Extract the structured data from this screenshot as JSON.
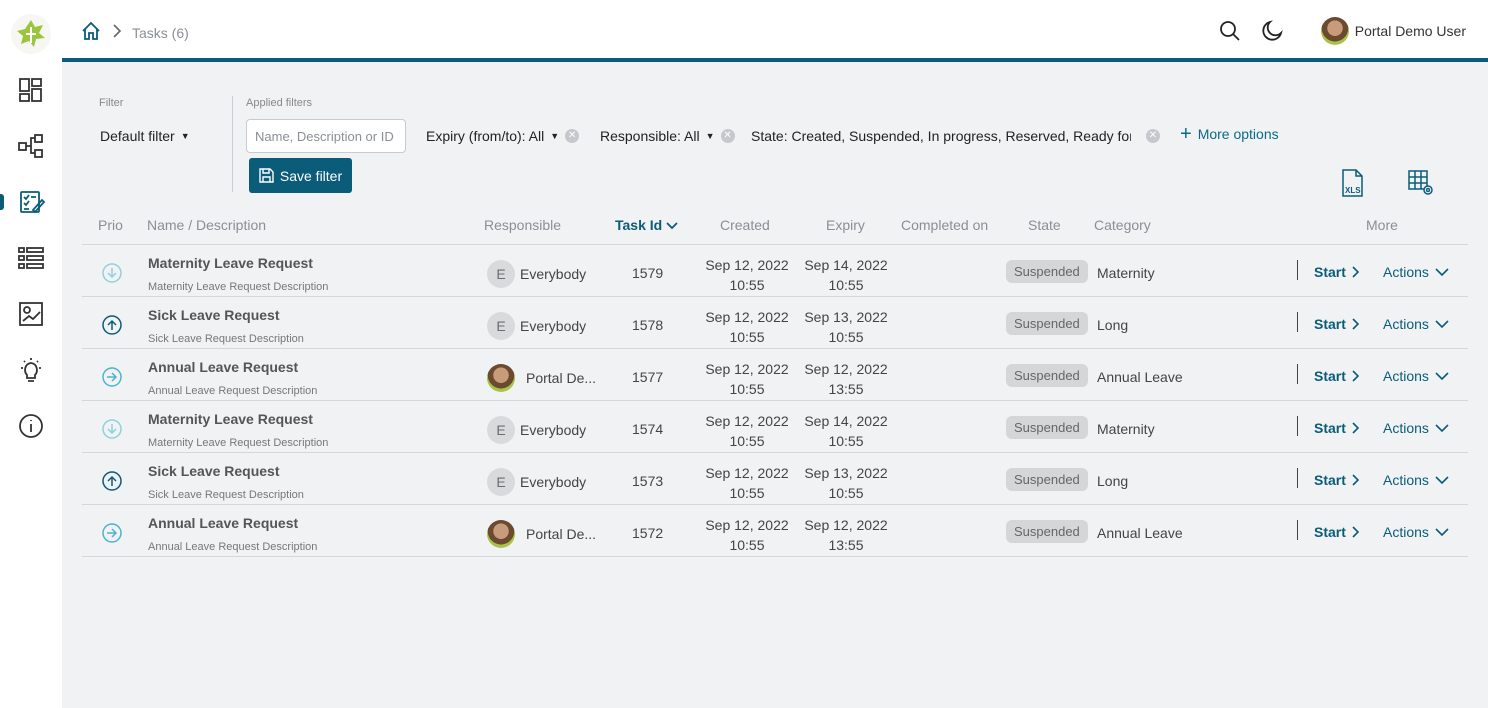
{
  "breadcrumb": {
    "current": "Tasks (6)"
  },
  "user": {
    "name": "Portal Demo User"
  },
  "filter": {
    "label": "Filter",
    "default_filter": "Default filter",
    "applied_label": "Applied filters",
    "search_placeholder": "Name, Description or ID",
    "expiry_chip": "Expiry (from/to): All",
    "responsible_chip": "Responsible: All",
    "state_chip": "State: Created, Suspended, In progress, Reserved, Ready for jo",
    "more_options": "More options",
    "save_filter": "Save filter"
  },
  "table": {
    "headers": {
      "prio": "Prio",
      "name": "Name / Description",
      "responsible": "Responsible",
      "task_id": "Task Id",
      "created": "Created",
      "expiry": "Expiry",
      "completed": "Completed on",
      "state": "State",
      "category": "Category",
      "more": "More"
    },
    "start_label": "Start",
    "actions_label": "Actions",
    "rows": [
      {
        "prio": "low",
        "name": "Maternity Leave Request",
        "desc": "Maternity Leave Request Description",
        "responsible_initial": "E",
        "responsible": "Everybody",
        "task_id": "1579",
        "created_date": "Sep 12, 2022",
        "created_time": "10:55",
        "expiry_date": "Sep 14, 2022",
        "expiry_time": "10:55",
        "state": "Suspended",
        "category": "Maternity"
      },
      {
        "prio": "high",
        "name": "Sick Leave Request",
        "desc": "Sick Leave Request Description",
        "responsible_initial": "E",
        "responsible": "Everybody",
        "task_id": "1578",
        "created_date": "Sep 12, 2022",
        "created_time": "10:55",
        "expiry_date": "Sep 13, 2022",
        "expiry_time": "10:55",
        "state": "Suspended",
        "category": "Long"
      },
      {
        "prio": "normal",
        "name": "Annual Leave Request",
        "desc": "Annual Leave Request Description",
        "responsible_initial": "",
        "responsible": "Portal De...",
        "task_id": "1577",
        "created_date": "Sep 12, 2022",
        "created_time": "10:55",
        "expiry_date": "Sep 12, 2022",
        "expiry_time": "13:55",
        "state": "Suspended",
        "category": "Annual Leave"
      },
      {
        "prio": "low",
        "name": "Maternity Leave Request",
        "desc": "Maternity Leave Request Description",
        "responsible_initial": "E",
        "responsible": "Everybody",
        "task_id": "1574",
        "created_date": "Sep 12, 2022",
        "created_time": "10:55",
        "expiry_date": "Sep 14, 2022",
        "expiry_time": "10:55",
        "state": "Suspended",
        "category": "Maternity"
      },
      {
        "prio": "high",
        "name": "Sick Leave Request",
        "desc": "Sick Leave Request Description",
        "responsible_initial": "E",
        "responsible": "Everybody",
        "task_id": "1573",
        "created_date": "Sep 12, 2022",
        "created_time": "10:55",
        "expiry_date": "Sep 13, 2022",
        "expiry_time": "10:55",
        "state": "Suspended",
        "category": "Long"
      },
      {
        "prio": "normal",
        "name": "Annual Leave Request",
        "desc": "Annual Leave Request Description",
        "responsible_initial": "",
        "responsible": "Portal De...",
        "task_id": "1572",
        "created_date": "Sep 12, 2022",
        "created_time": "10:55",
        "expiry_date": "Sep 12, 2022",
        "expiry_time": "13:55",
        "state": "Suspended",
        "category": "Annual Leave"
      }
    ]
  },
  "colors": {
    "accent": "#0a5c79",
    "prio_low": "#8fd0e0",
    "prio_high": "#0a5c79",
    "prio_normal": "#4cb3cf"
  }
}
